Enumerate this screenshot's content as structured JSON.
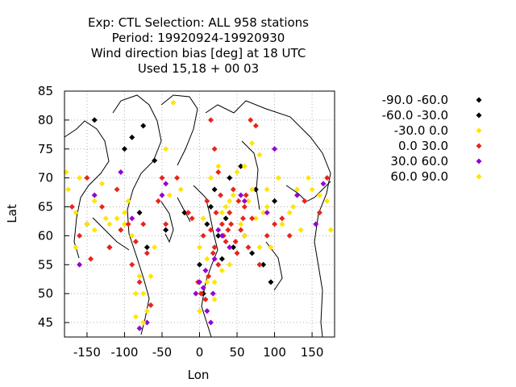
{
  "chart_data": {
    "type": "scatter",
    "title_lines": [
      "Exp: CTL   Selection: ALL    958 stations",
      "Period: 19920924-19920930",
      "Wind direction bias [deg] at  18 UTC",
      "Used  15,18 + 00 03"
    ],
    "xlabel": "Lon",
    "ylabel": "Lat",
    "xlim": [
      -180,
      180
    ],
    "ylim": [
      42.5,
      85
    ],
    "xticks": [
      -150,
      -100,
      -50,
      0,
      50,
      100,
      150
    ],
    "yticks": [
      45,
      50,
      55,
      60,
      65,
      70,
      75,
      80,
      85
    ],
    "grid": true,
    "legend_position": "right",
    "series": [
      {
        "name": "-90.0 -60.0",
        "color": "#000000",
        "points": [
          [
            -140,
            80
          ],
          [
            -90,
            77
          ],
          [
            -75,
            79
          ],
          [
            -60,
            73
          ],
          [
            -45,
            61
          ],
          [
            15,
            65
          ],
          [
            25,
            60
          ],
          [
            30,
            56
          ],
          [
            40,
            70
          ],
          [
            55,
            72
          ],
          [
            70,
            57
          ],
          [
            85,
            55
          ],
          [
            100,
            66
          ],
          [
            5,
            50
          ],
          [
            -120,
            58
          ]
        ]
      },
      {
        "name": "-60.0 -30.0",
        "color": "#000000",
        "points": [
          [
            -100,
            75
          ],
          [
            -80,
            64
          ],
          [
            -70,
            58
          ],
          [
            -20,
            64
          ],
          [
            10,
            62
          ],
          [
            20,
            68
          ],
          [
            35,
            63
          ],
          [
            45,
            58
          ],
          [
            75,
            68
          ],
          [
            95,
            52
          ],
          [
            -150,
            62
          ],
          [
            0,
            55
          ],
          [
            60,
            60
          ]
        ]
      },
      {
        "name": "-30.0 0.0",
        "color": "#ffe500",
        "points": [
          [
            -178,
            71
          ],
          [
            -165,
            64
          ],
          [
            -150,
            62
          ],
          [
            -140,
            61
          ],
          [
            -125,
            63
          ],
          [
            -110,
            63
          ],
          [
            -100,
            62
          ],
          [
            -90,
            60
          ],
          [
            -75,
            50
          ],
          [
            -70,
            47
          ],
          [
            -80,
            53
          ],
          [
            -85,
            46
          ],
          [
            -60,
            58
          ],
          [
            -40,
            67
          ],
          [
            -35,
            83
          ],
          [
            -25,
            68
          ],
          [
            5,
            63
          ],
          [
            15,
            70
          ],
          [
            25,
            72
          ],
          [
            35,
            65
          ],
          [
            45,
            67
          ],
          [
            55,
            62
          ],
          [
            65,
            66
          ],
          [
            75,
            63
          ],
          [
            85,
            64
          ],
          [
            95,
            58
          ],
          [
            110,
            62
          ],
          [
            120,
            64
          ],
          [
            130,
            68
          ],
          [
            145,
            70
          ],
          [
            160,
            67
          ],
          [
            175,
            61
          ],
          [
            -160,
            70
          ],
          [
            -130,
            69
          ],
          [
            -95,
            66
          ],
          [
            0,
            58
          ],
          [
            10,
            52
          ],
          [
            20,
            49
          ],
          [
            30,
            54
          ],
          [
            40,
            55
          ],
          [
            50,
            71
          ],
          [
            60,
            60
          ],
          [
            70,
            68
          ],
          [
            80,
            74
          ],
          [
            90,
            68
          ]
        ]
      },
      {
        "name": "0.0 30.0",
        "color": "#e8241b",
        "points": [
          [
            -170,
            65
          ],
          [
            -160,
            60
          ],
          [
            -150,
            70
          ],
          [
            -145,
            56
          ],
          [
            -130,
            65
          ],
          [
            -120,
            58
          ],
          [
            -110,
            68
          ],
          [
            -105,
            61
          ],
          [
            -95,
            62
          ],
          [
            -90,
            55
          ],
          [
            -85,
            59
          ],
          [
            -80,
            52
          ],
          [
            -75,
            62
          ],
          [
            -70,
            57
          ],
          [
            -65,
            48
          ],
          [
            -55,
            66
          ],
          [
            -50,
            70
          ],
          [
            -45,
            62
          ],
          [
            -30,
            70
          ],
          [
            -15,
            64
          ],
          [
            -10,
            63
          ],
          [
            5,
            60
          ],
          [
            10,
            66
          ],
          [
            15,
            61
          ],
          [
            20,
            58
          ],
          [
            25,
            55
          ],
          [
            30,
            62
          ],
          [
            35,
            59
          ],
          [
            40,
            64
          ],
          [
            45,
            68
          ],
          [
            50,
            57
          ],
          [
            55,
            61
          ],
          [
            60,
            65
          ],
          [
            65,
            58
          ],
          [
            70,
            63
          ],
          [
            75,
            79
          ],
          [
            80,
            55
          ],
          [
            90,
            60
          ],
          [
            100,
            62
          ],
          [
            110,
            63
          ],
          [
            120,
            60
          ],
          [
            140,
            66
          ],
          [
            160,
            64
          ],
          [
            170,
            70
          ],
          [
            -2,
            52
          ],
          [
            2,
            50
          ],
          [
            8,
            49
          ],
          [
            12,
            53
          ],
          [
            18,
            57
          ],
          [
            22,
            64
          ],
          [
            28,
            67
          ],
          [
            32,
            60
          ],
          [
            38,
            61
          ],
          [
            42,
            62
          ],
          [
            48,
            59
          ],
          [
            52,
            66
          ],
          [
            58,
            63
          ],
          [
            62,
            67
          ],
          [
            68,
            80
          ],
          [
            25,
            71
          ],
          [
            20,
            75
          ],
          [
            15,
            80
          ]
        ]
      },
      {
        "name": "30.0 60.0",
        "color": "#9500d0",
        "points": [
          [
            -160,
            55
          ],
          [
            -140,
            67
          ],
          [
            -105,
            71
          ],
          [
            -90,
            63
          ],
          [
            -80,
            44
          ],
          [
            -70,
            45
          ],
          [
            -50,
            67
          ],
          [
            -45,
            69
          ],
          [
            0,
            52
          ],
          [
            5,
            51
          ],
          [
            10,
            47
          ],
          [
            15,
            45
          ],
          [
            20,
            56
          ],
          [
            25,
            61
          ],
          [
            30,
            60
          ],
          [
            40,
            58
          ],
          [
            55,
            67
          ],
          [
            60,
            66
          ],
          [
            90,
            64
          ],
          [
            100,
            75
          ],
          [
            130,
            67
          ],
          [
            155,
            62
          ],
          [
            165,
            69
          ],
          [
            -5,
            50
          ],
          [
            8,
            54
          ],
          [
            18,
            50
          ]
        ]
      },
      {
        "name": "60.0 90.0",
        "color": "#ffe500",
        "points": [
          [
            -175,
            68
          ],
          [
            -165,
            58
          ],
          [
            -140,
            66
          ],
          [
            -120,
            62
          ],
          [
            -100,
            64
          ],
          [
            -85,
            50
          ],
          [
            -75,
            45
          ],
          [
            -65,
            53
          ],
          [
            -45,
            75
          ],
          [
            0,
            47
          ],
          [
            10,
            56
          ],
          [
            20,
            52
          ],
          [
            30,
            64
          ],
          [
            40,
            66
          ],
          [
            60,
            72
          ],
          [
            70,
            76
          ],
          [
            80,
            58
          ],
          [
            90,
            65
          ],
          [
            105,
            70
          ],
          [
            125,
            65
          ],
          [
            135,
            61
          ],
          [
            150,
            68
          ],
          [
            170,
            66
          ]
        ]
      }
    ]
  }
}
